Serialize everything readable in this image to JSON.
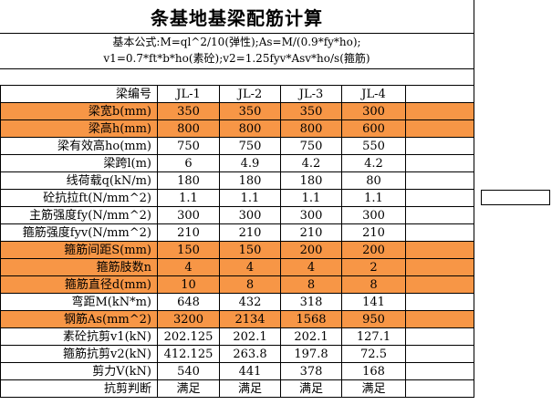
{
  "title": "条基地基梁配筋计算",
  "formula": {
    "line1": "基本公式:M=ql^2/10(弹性);As=M/(0.9*fy*ho);",
    "line2": "v1=0.7*ft*b*ho(素砼);v2=1.25fyv*Asv*ho/s(箍筋)"
  },
  "header": {
    "label": "梁编号",
    "cols": [
      "JL-1",
      "JL-2",
      "JL-3",
      "JL-4"
    ]
  },
  "rows": [
    {
      "label": "梁宽b(mm)",
      "values": [
        "350",
        "350",
        "350",
        "300"
      ],
      "highlight": true
    },
    {
      "label": "梁高h(mm)",
      "values": [
        "800",
        "800",
        "800",
        "600"
      ],
      "highlight": true
    },
    {
      "label": "梁有效高ho(mm)",
      "values": [
        "750",
        "750",
        "750",
        "550"
      ],
      "highlight": false
    },
    {
      "label": "梁跨l(m)",
      "values": [
        "6",
        "4.9",
        "4.2",
        "4.2"
      ],
      "highlight": false
    },
    {
      "label": "线荷载q(kN/m)",
      "values": [
        "180",
        "180",
        "180",
        "80"
      ],
      "highlight": false
    },
    {
      "label": "砼抗拉ft(N/mm^2)",
      "values": [
        "1.1",
        "1.1",
        "1.1",
        "1.1"
      ],
      "highlight": false
    },
    {
      "label": "主筋强度fy(N/mm^2)",
      "values": [
        "300",
        "300",
        "300",
        "300"
      ],
      "highlight": false
    },
    {
      "label": "箍筋强度fyv(N/mm^2)",
      "values": [
        "210",
        "210",
        "210",
        "210"
      ],
      "highlight": false
    },
    {
      "label": "箍筋间距S(mm)",
      "values": [
        "150",
        "150",
        "200",
        "200"
      ],
      "highlight": true
    },
    {
      "label": "箍筋肢数n",
      "values": [
        "4",
        "4",
        "4",
        "2"
      ],
      "highlight": true
    },
    {
      "label": "箍筋直径d(mm)",
      "values": [
        "10",
        "8",
        "8",
        "8"
      ],
      "highlight": true
    },
    {
      "label": "弯距M(kN*m)",
      "values": [
        "648",
        "432",
        "318",
        "141"
      ],
      "highlight": false
    },
    {
      "label": "钢筋As(mm^2)",
      "values": [
        "3200",
        "2134",
        "1568",
        "950"
      ],
      "highlight": true
    },
    {
      "label": "素砼抗剪v1(kN)",
      "values": [
        "202.125",
        "202.1",
        "202.1",
        "127.1"
      ],
      "highlight": false
    },
    {
      "label": "箍筋抗剪v2(kN)",
      "values": [
        "412.125",
        "263.8",
        "197.8",
        "72.5"
      ],
      "highlight": false
    },
    {
      "label": "剪力V(kN)",
      "values": [
        "540",
        "441",
        "378",
        "168"
      ],
      "highlight": false
    },
    {
      "label": "抗剪判断",
      "values": [
        "满足",
        "满足",
        "满足",
        "满足"
      ],
      "highlight": false
    }
  ],
  "colors": {
    "highlight": "#f79646"
  }
}
